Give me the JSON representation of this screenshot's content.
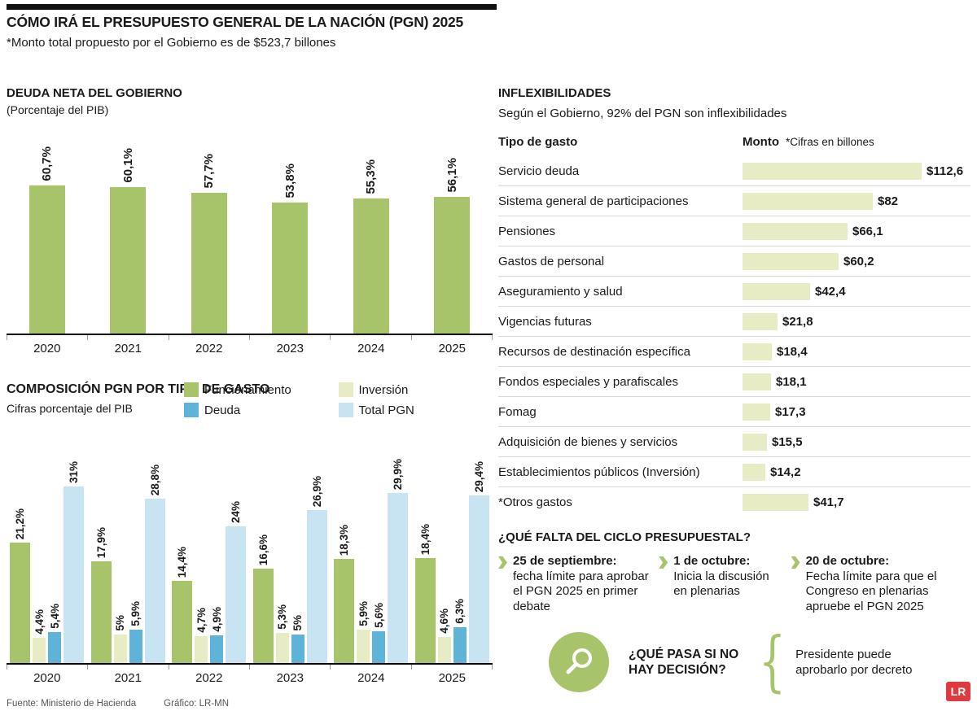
{
  "header": {
    "title": "CÓMO IRÁ EL PRESUPUESTO GENERAL DE LA NACIÓN (PGN) 2025",
    "subtitle": "*Monto total propuesto por el Gobierno es de $523,7 billones"
  },
  "colors": {
    "green": "#a7c46a",
    "pale": "#e7ecc5",
    "blue": "#5db3d8",
    "light_blue": "#c8e4f2",
    "red": "#e03a3e",
    "black": "#111111"
  },
  "chart_data": [
    {
      "id": "deuda_neta",
      "type": "bar",
      "title": "DEUDA NETA DEL GOBIERNO",
      "subtitle": "(Porcentaje del PIB)",
      "categories": [
        "2020",
        "2021",
        "2022",
        "2023",
        "2024",
        "2025"
      ],
      "values": [
        60.7,
        60.1,
        57.7,
        53.8,
        55.3,
        56.1
      ],
      "labels": [
        "60,7%",
        "60,1%",
        "57,7%",
        "53,8%",
        "55,3%",
        "56,1%"
      ],
      "ylabel": "Porcentaje del PIB",
      "ylim": [
        0,
        65
      ],
      "grid": false
    },
    {
      "id": "composicion",
      "type": "bar",
      "title": "COMPOSICIÓN PGN POR TIPO DE GASTO",
      "subtitle": "Cifras porcentaje del PIB",
      "categories": [
        "2020",
        "2021",
        "2022",
        "2023",
        "2024",
        "2025"
      ],
      "series": [
        {
          "name": "Funcionamiento",
          "color_key": "green",
          "values": [
            21.2,
            17.9,
            14.4,
            16.6,
            18.3,
            18.4
          ],
          "labels": [
            "21,2%",
            "17,9%",
            "14,4%",
            "16,6%",
            "18,3%",
            "18,4%"
          ]
        },
        {
          "name": "Inversión",
          "color_key": "pale",
          "values": [
            4.4,
            5,
            4.7,
            5.3,
            5.9,
            4.6
          ],
          "labels": [
            "4,4%",
            "5%",
            "4,7%",
            "5,3%",
            "5,9%",
            "4,6%"
          ]
        },
        {
          "name": "Deuda",
          "color_key": "blue",
          "values": [
            5.4,
            5.9,
            4.9,
            5,
            5.6,
            6.3
          ],
          "labels": [
            "5,4%",
            "5,9%",
            "4,9%",
            "5%",
            "5,6%",
            "6,3%"
          ]
        },
        {
          "name": "Total PGN",
          "color_key": "light_blue",
          "values": [
            31,
            28.8,
            24,
            26.9,
            29.9,
            29.4
          ],
          "labels": [
            "31%",
            "28,8%",
            "24%",
            "26,9%",
            "29,9%",
            "29,4%"
          ]
        }
      ],
      "ylim": [
        0,
        32
      ],
      "legend_position": "top-right",
      "grid": false
    },
    {
      "id": "inflexibilidades",
      "type": "bar",
      "title": "INFLEXIBILIDADES",
      "subtitle": "Según el Gobierno, 92% del PGN son inflexibilidades",
      "col_header_left": "Tipo de gasto",
      "col_header_right": "Monto",
      "note": "*Cifras en billones",
      "categories": [
        "Servicio deuda",
        "Sistema general de participaciones",
        "Pensiones",
        "Gastos de personal",
        "Aseguramiento y salud",
        "Vigencias futuras",
        "Recursos de destinación específica",
        "Fondos especiales y parafiscales",
        "Fomag",
        "Adquisición de bienes y servicios",
        "Establecimientos públicos (Inversión)",
        "*Otros gastos"
      ],
      "values": [
        112.6,
        82,
        66.1,
        60.2,
        42.4,
        21.8,
        18.4,
        18.1,
        17.3,
        15.5,
        14.2,
        41.7
      ],
      "labels": [
        "$112,6",
        "$82",
        "$66,1",
        "$60,2",
        "$42,4",
        "$21,8",
        "$18,4",
        "$18,1",
        "$17,3",
        "$15,5",
        "$14,2",
        "$41,7"
      ]
    }
  ],
  "cycle": {
    "title": "¿QUÉ FALTA DEL CICLO PRESUPUESTAL?",
    "milestones": [
      {
        "date": "25 de septiembre:",
        "text": "fecha límite para aprobar el PGN 2025 en primer debate"
      },
      {
        "date": "1 de octubre:",
        "text": "Inicia la discusión en plenarias"
      },
      {
        "date": "20 de octubre:",
        "text": "Fecha límite para que el Congreso en plenarias apruebe el PGN 2025"
      }
    ]
  },
  "decision": {
    "question": "¿QUÉ PASA SI NO HAY DECISIÓN?",
    "answer": "Presidente puede aprobarlo por decreto",
    "brace": "{",
    "icon": "magnifier-icon"
  },
  "footer": {
    "source": "Fuente:  Ministerio de Hacienda",
    "credit": "Gráfico: LR-MN"
  },
  "logo": "LR"
}
